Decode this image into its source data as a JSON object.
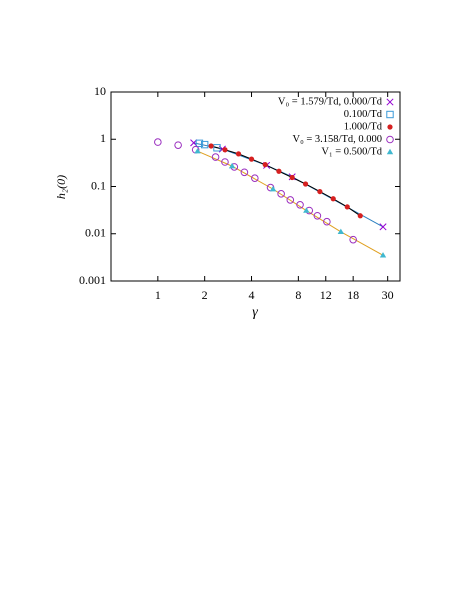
{
  "chart_data": {
    "type": "scatter",
    "x_label": "γ",
    "y_label": "h₂(0)",
    "xlog": true,
    "ylog": true,
    "xlim": [
      0.5,
      36
    ],
    "ylim": [
      0.001,
      10
    ],
    "xticks": [
      1,
      2,
      4,
      8,
      12,
      18,
      30
    ],
    "yticks": [
      10,
      1,
      0.1,
      0.01,
      0.001
    ],
    "legend": "upper right",
    "series": [
      {
        "name": "V₀ = 1.579/Td, 0.000/Td",
        "marker": "cross",
        "color": "#9400d3",
        "line_color": "#2a7fc0",
        "x": [
          1.7,
          2.6,
          5.0,
          7.3,
          28
        ],
        "values": [
          0.84,
          0.62,
          0.28,
          0.16,
          0.014
        ]
      },
      {
        "name": "0.100/Td",
        "marker": "square",
        "color": "#3a9ad9",
        "x": [
          1.85,
          2.0,
          2.4
        ],
        "values": [
          0.82,
          0.77,
          0.66
        ]
      },
      {
        "name": "1.000/Td",
        "marker": "dot",
        "color": "#d62020",
        "line_color": "#000000",
        "x": [
          2.2,
          2.7,
          3.3,
          4.0,
          4.9,
          6.0,
          7.3,
          8.9,
          11,
          13.4,
          16.5,
          20
        ],
        "values": [
          0.72,
          0.6,
          0.49,
          0.38,
          0.29,
          0.21,
          0.155,
          0.113,
          0.078,
          0.055,
          0.037,
          0.024
        ]
      },
      {
        "name": "V₀ = 3.158/Td, 0.000",
        "marker": "circle",
        "color": "#9b30c0",
        "x": [
          1,
          1.35,
          1.75,
          2.35,
          2.7,
          3.1,
          3.6,
          4.2,
          5.3,
          6.2,
          7.1,
          8.2,
          9.4,
          10.6,
          12.2,
          18
        ],
        "values": [
          0.87,
          0.75,
          0.6,
          0.42,
          0.33,
          0.26,
          0.2,
          0.15,
          0.095,
          0.07,
          0.052,
          0.041,
          0.031,
          0.024,
          0.018,
          0.0075
        ]
      },
      {
        "name": "V₁ = 0.500/Td",
        "marker": "triangle",
        "color": "#40b8d0",
        "line_color": "#e0a020",
        "x": [
          1.8,
          3,
          5.5,
          9,
          15,
          28
        ],
        "values": [
          0.56,
          0.27,
          0.088,
          0.031,
          0.011,
          0.0035
        ]
      }
    ]
  }
}
